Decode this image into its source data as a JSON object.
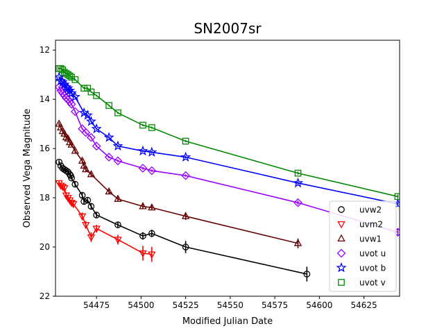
{
  "chart_data": {
    "type": "scatter",
    "title": "SN2007sr",
    "xlabel": "Modified Julian Date",
    "ylabel": "Observed Vega Magnitude",
    "xlim": [
      54452,
      54645
    ],
    "ylim": [
      22,
      11.6
    ],
    "y_inverted": true,
    "x_ticks": [
      54475,
      54500,
      54525,
      54550,
      54575,
      54600,
      54625
    ],
    "y_ticks": [
      12,
      14,
      16,
      18,
      20,
      22
    ],
    "x_tick_labels": [
      "54475",
      "54500",
      "54525",
      "54550",
      "54575",
      "54600",
      "54625"
    ],
    "y_tick_labels": [
      "12",
      "14",
      "16",
      "18",
      "20",
      "22"
    ],
    "grid": false,
    "legend_position": "lower-right",
    "series": [
      {
        "name": "uvw2",
        "marker": "circle",
        "color": "#000000",
        "points": [
          [
            54454,
            16.55
          ],
          [
            54455,
            16.7
          ],
          [
            54456,
            16.8
          ],
          [
            54457,
            16.85
          ],
          [
            54458,
            16.9
          ],
          [
            54459,
            16.95
          ],
          [
            54460,
            17.05
          ],
          [
            54460.5,
            17.1
          ],
          [
            54461,
            17.2
          ],
          [
            54463,
            17.45
          ],
          [
            54467,
            17.9
          ],
          [
            54468,
            18.15
          ],
          [
            54470,
            18.1
          ],
          [
            54472,
            18.35
          ],
          [
            54475,
            18.7
          ],
          [
            54487,
            19.1
          ],
          [
            54501,
            19.55
          ],
          [
            54506,
            19.45
          ],
          [
            54525,
            20.0
          ],
          [
            54593,
            21.1
          ]
        ],
        "errors": [
          0.08,
          0.08,
          0.08,
          0.08,
          0.08,
          0.08,
          0.08,
          0.08,
          0.08,
          0.1,
          0.1,
          0.1,
          0.1,
          0.1,
          0.1,
          0.12,
          0.15,
          0.15,
          0.25,
          0.3
        ]
      },
      {
        "name": "uvm2",
        "marker": "triangle-down",
        "color": "#ff0000",
        "points": [
          [
            54454,
            17.4
          ],
          [
            54455,
            17.5
          ],
          [
            54456,
            17.55
          ],
          [
            54457,
            17.6
          ],
          [
            54458,
            17.9
          ],
          [
            54459,
            18.0
          ],
          [
            54460,
            18.1
          ],
          [
            54461,
            18.2
          ],
          [
            54462,
            18.25
          ],
          [
            54467,
            18.75
          ],
          [
            54469,
            19.1
          ],
          [
            54472,
            19.6
          ],
          [
            54475,
            19.25
          ],
          [
            54487,
            19.7
          ],
          [
            54501,
            20.25
          ],
          [
            54506,
            20.3
          ]
        ],
        "errors": [
          0.1,
          0.1,
          0.1,
          0.1,
          0.12,
          0.12,
          0.12,
          0.12,
          0.12,
          0.15,
          0.15,
          0.2,
          0.15,
          0.2,
          0.3,
          0.3
        ]
      },
      {
        "name": "uvw1",
        "marker": "triangle-up",
        "color": "#660000",
        "points": [
          [
            54454,
            15.0
          ],
          [
            54455,
            15.15
          ],
          [
            54456,
            15.3
          ],
          [
            54457,
            15.4
          ],
          [
            54458,
            15.55
          ],
          [
            54459,
            15.6
          ],
          [
            54460,
            15.75
          ],
          [
            54461,
            15.85
          ],
          [
            54463,
            16.1
          ],
          [
            54467,
            16.5
          ],
          [
            54468,
            16.7
          ],
          [
            54469,
            16.85
          ],
          [
            54472,
            17.05
          ],
          [
            54482,
            17.75
          ],
          [
            54487,
            18.05
          ],
          [
            54501,
            18.35
          ],
          [
            54506,
            18.4
          ],
          [
            54525,
            18.75
          ],
          [
            54588,
            19.85
          ]
        ],
        "errors": [
          0.06,
          0.06,
          0.06,
          0.06,
          0.06,
          0.06,
          0.06,
          0.06,
          0.07,
          0.08,
          0.08,
          0.08,
          0.08,
          0.08,
          0.1,
          0.1,
          0.1,
          0.15,
          0.2
        ]
      },
      {
        "name": "uvot u",
        "marker": "diamond",
        "color": "#9900ff",
        "points": [
          [
            54454,
            13.5
          ],
          [
            54455,
            13.65
          ],
          [
            54456,
            13.75
          ],
          [
            54457,
            13.85
          ],
          [
            54458,
            13.95
          ],
          [
            54459,
            14.0
          ],
          [
            54460,
            14.1
          ],
          [
            54461,
            14.2
          ],
          [
            54463,
            14.5
          ],
          [
            54467,
            15.2
          ],
          [
            54469,
            15.35
          ],
          [
            54472,
            15.55
          ],
          [
            54475,
            15.9
          ],
          [
            54482,
            16.35
          ],
          [
            54487,
            16.5
          ],
          [
            54501,
            16.8
          ],
          [
            54506,
            16.9
          ],
          [
            54525,
            17.1
          ],
          [
            54588,
            18.2
          ],
          [
            54644,
            19.4
          ]
        ],
        "errors": [
          0.04,
          0.04,
          0.04,
          0.04,
          0.04,
          0.04,
          0.04,
          0.04,
          0.04,
          0.04,
          0.04,
          0.04,
          0.04,
          0.05,
          0.05,
          0.05,
          0.05,
          0.05,
          0.08,
          0.15
        ]
      },
      {
        "name": "uvot b",
        "marker": "star",
        "color": "#0000ff",
        "points": [
          [
            54454,
            13.1
          ],
          [
            54455,
            13.25
          ],
          [
            54456,
            13.3
          ],
          [
            54457,
            13.4
          ],
          [
            54458,
            13.5
          ],
          [
            54459,
            13.55
          ],
          [
            54460,
            13.65
          ],
          [
            54461,
            13.75
          ],
          [
            54463,
            13.9
          ],
          [
            54468,
            14.55
          ],
          [
            54470,
            14.65
          ],
          [
            54472,
            14.9
          ],
          [
            54475,
            15.2
          ],
          [
            54482,
            15.55
          ],
          [
            54487,
            15.9
          ],
          [
            54501,
            16.1
          ],
          [
            54506,
            16.15
          ],
          [
            54525,
            16.35
          ],
          [
            54588,
            17.4
          ],
          [
            54644,
            18.25
          ]
        ],
        "errors": [
          0.03,
          0.03,
          0.03,
          0.03,
          0.03,
          0.03,
          0.03,
          0.03,
          0.03,
          0.03,
          0.03,
          0.03,
          0.03,
          0.04,
          0.04,
          0.04,
          0.04,
          0.04,
          0.05,
          0.06
        ]
      },
      {
        "name": "uvot v",
        "marker": "square",
        "color": "#008800",
        "points": [
          [
            54454,
            12.75
          ],
          [
            54455,
            12.75
          ],
          [
            54456,
            12.8
          ],
          [
            54457,
            12.9
          ],
          [
            54458,
            12.95
          ],
          [
            54459,
            13.0
          ],
          [
            54460,
            13.05
          ],
          [
            54461,
            13.1
          ],
          [
            54463,
            13.2
          ],
          [
            54468,
            13.55
          ],
          [
            54470,
            13.55
          ],
          [
            54472,
            13.7
          ],
          [
            54475,
            13.85
          ],
          [
            54482,
            14.25
          ],
          [
            54487,
            14.55
          ],
          [
            54501,
            15.05
          ],
          [
            54506,
            15.15
          ],
          [
            54525,
            15.7
          ],
          [
            54588,
            17.0
          ],
          [
            54644,
            17.95
          ]
        ],
        "errors": [
          0.03,
          0.03,
          0.03,
          0.03,
          0.03,
          0.03,
          0.03,
          0.03,
          0.03,
          0.03,
          0.03,
          0.03,
          0.03,
          0.04,
          0.04,
          0.04,
          0.04,
          0.05,
          0.06,
          0.08
        ]
      }
    ]
  }
}
